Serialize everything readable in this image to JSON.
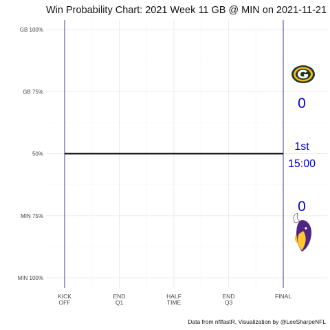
{
  "chart_data": {
    "type": "line",
    "title": "Win Probability Chart: 2021 Week 11 GB @ MIN on 2021-11-21",
    "y_ticks": [
      {
        "label": "GB 100%",
        "value": 1.0
      },
      {
        "label": "GB 75%",
        "value": 0.75
      },
      {
        "label": "50%",
        "value": 0.5
      },
      {
        "label": "MIN 75%",
        "value": 0.25
      },
      {
        "label": "MIN 100%",
        "value": 0.0
      }
    ],
    "ylim": [
      0,
      1
    ],
    "x_ticks": [
      {
        "label": [
          "KICK",
          "OFF"
        ],
        "value": 0
      },
      {
        "label": [
          "END",
          "Q1"
        ],
        "value": 900
      },
      {
        "label": [
          "HALF",
          "TIME"
        ],
        "value": 1800
      },
      {
        "label": [
          "END",
          "Q3"
        ],
        "value": 2700
      },
      {
        "label": [
          "FINAL"
        ],
        "value": 3600
      }
    ],
    "xlim": [
      0,
      3600
    ],
    "series": [
      {
        "x": [
          0,
          3600
        ],
        "values": [
          0.5,
          0.5
        ],
        "color": "#000000"
      }
    ],
    "vlines": [
      0,
      3600
    ],
    "vline_color": "#3b3b8f",
    "grid": true,
    "teams": {
      "home": {
        "abbr": "MIN",
        "score": "0",
        "logo": "vikings-logo-icon"
      },
      "away": {
        "abbr": "GB",
        "score": "0",
        "logo": "packers-logo-icon"
      }
    },
    "game_state": {
      "quarter": "1st",
      "clock": "15:00"
    },
    "annotation_color": "#0000dd",
    "caption": "Data from nflfastR, Visualization by @LeeSharpeNFL"
  }
}
